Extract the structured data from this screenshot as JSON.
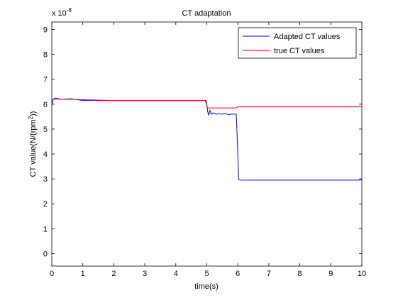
{
  "chart_data": {
    "type": "line",
    "title": "CT adaptation",
    "xlabel": "time(s)",
    "ylabel_main": "CT value(N/(rpm",
    "ylabel_sup": "2",
    "ylabel_end": "))",
    "y_exponent_base": "x 10",
    "y_exponent_power": "-8",
    "xlim": [
      0,
      10
    ],
    "ylim": [
      -0.5,
      9.3
    ],
    "x_ticks": [
      0,
      1,
      2,
      3,
      4,
      5,
      6,
      7,
      8,
      9,
      10
    ],
    "y_ticks": [
      0,
      1,
      2,
      3,
      4,
      5,
      6,
      7,
      8,
      9
    ],
    "grid": false,
    "legend_position": "top-right",
    "series": [
      {
        "name": "Adapted CT values",
        "color": "#0000ff",
        "x": [
          0,
          0.03,
          0.1,
          0.3,
          0.6,
          1.0,
          2.0,
          3.0,
          4.0,
          4.95,
          5.0,
          5.03,
          5.06,
          5.1,
          5.15,
          5.2,
          5.3,
          5.4,
          5.5,
          5.6,
          5.7,
          5.8,
          5.9,
          5.95,
          5.97,
          6.0,
          6.03,
          6.1,
          7.0,
          8.0,
          9.0,
          9.95,
          10.0
        ],
        "y": [
          5.95,
          6.15,
          6.25,
          6.2,
          6.22,
          6.15,
          6.15,
          6.15,
          6.15,
          6.15,
          5.95,
          5.7,
          5.55,
          5.75,
          5.6,
          5.65,
          5.6,
          5.62,
          5.6,
          5.62,
          5.58,
          5.6,
          5.6,
          5.6,
          5.0,
          4.0,
          2.98,
          2.95,
          2.95,
          2.95,
          2.95,
          2.95,
          2.98
        ]
      },
      {
        "name": "true CT values",
        "color": "#ff0000",
        "x": [
          0,
          0.1,
          0.3,
          0.6,
          1.0,
          2.0,
          3.0,
          4.0,
          4.98,
          5.02,
          5.5,
          5.95,
          6.0,
          7.0,
          8.0,
          9.0,
          10.0
        ],
        "y": [
          6.2,
          6.2,
          6.2,
          6.2,
          6.18,
          6.15,
          6.15,
          6.15,
          6.15,
          5.85,
          5.85,
          5.85,
          5.9,
          5.9,
          5.9,
          5.9,
          5.9
        ]
      }
    ]
  }
}
